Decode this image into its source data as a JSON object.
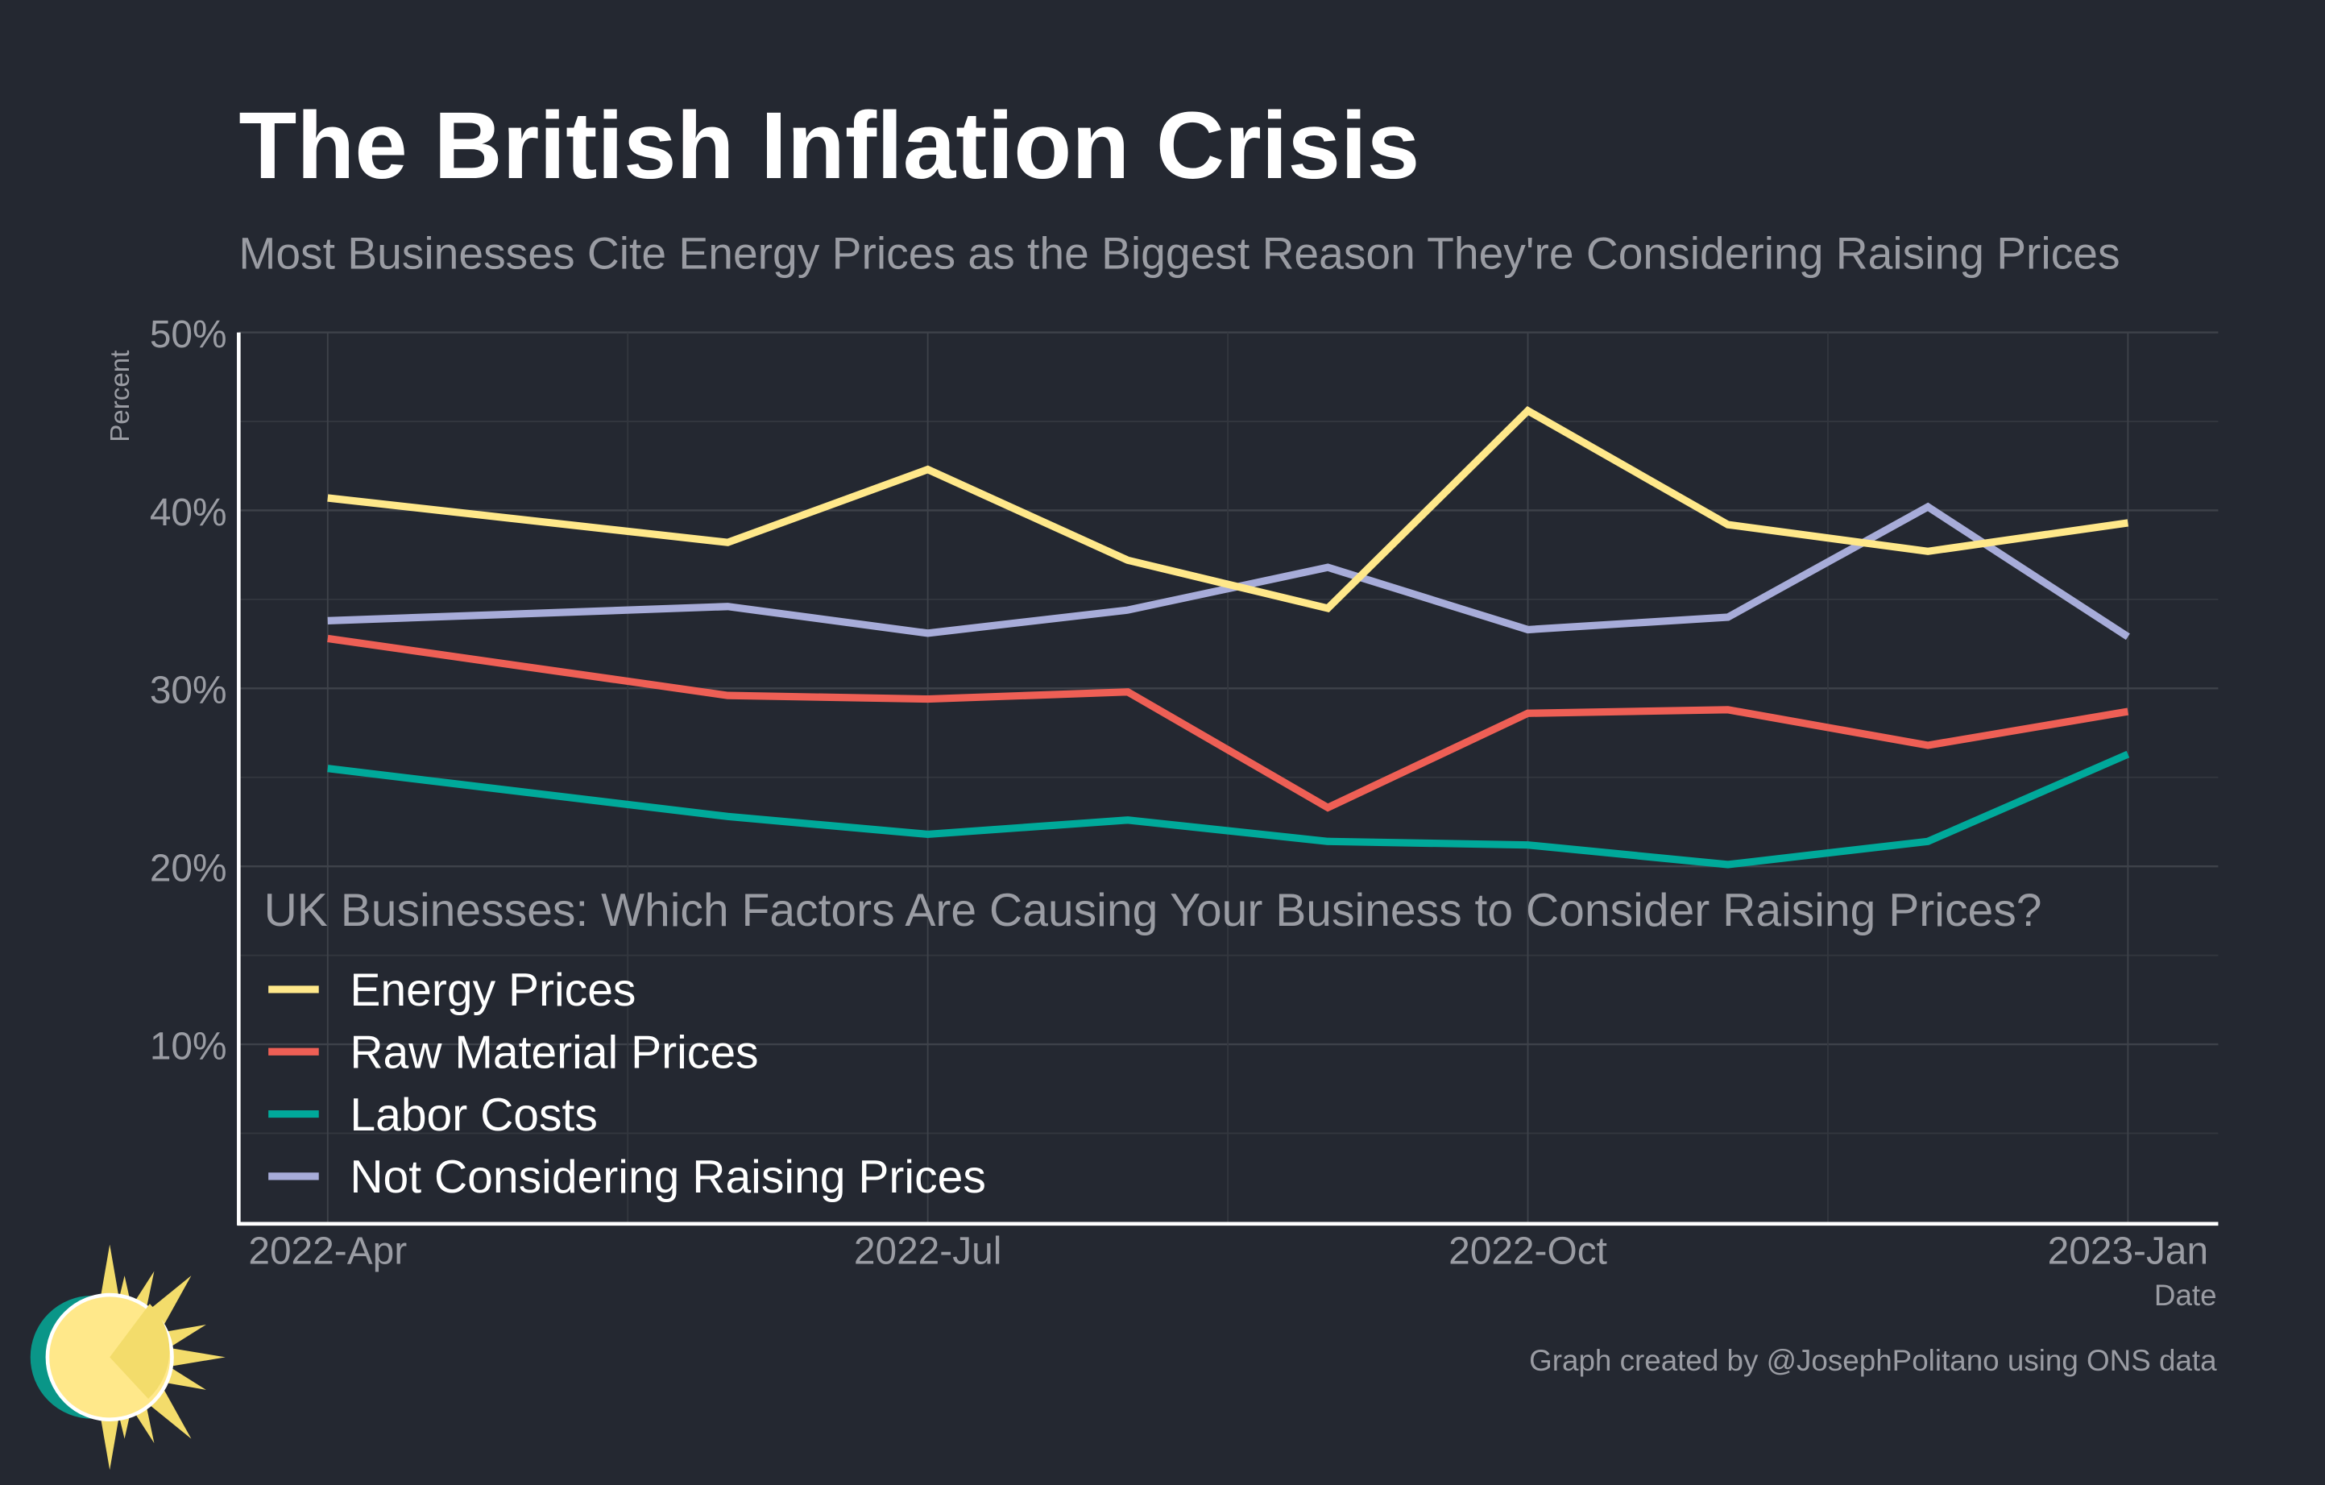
{
  "chart_data": {
    "type": "line",
    "title": "The British Inflation Crisis",
    "subtitle": "Most Businesses Cite Energy Prices as the Biggest Reason They're Considering Raising Prices",
    "xlabel": "Date",
    "ylabel": "Percent",
    "ylim": [
      0,
      50
    ],
    "yticks": [
      10,
      20,
      30,
      40,
      50
    ],
    "ytick_labels": [
      "10%",
      "20%",
      "30%",
      "40%",
      "50%"
    ],
    "xtick_values": [
      "2022-04",
      "2022-07",
      "2022-10",
      "2023-01"
    ],
    "xtick_labels": [
      "2022-Apr",
      "2022-Jul",
      "2022-Oct",
      "2023-Jan"
    ],
    "grid": true,
    "legend_title": "UK Businesses: Which Factors Are Causing Your Business to Consider Raising Prices?",
    "legend_placement": "bottom-left",
    "x": [
      "2022-04",
      "2022-06",
      "2022-07",
      "2022-08",
      "2022-09",
      "2022-10",
      "2022-11",
      "2022-12",
      "2023-01"
    ],
    "series": [
      {
        "name": "Energy Prices",
        "color": "#ffe88a",
        "values": [
          40.7,
          38.2,
          42.3,
          37.2,
          34.5,
          45.6,
          39.2,
          37.7,
          39.3
        ]
      },
      {
        "name": "Raw Material Prices",
        "color": "#ee5f55",
        "values": [
          32.8,
          29.6,
          29.4,
          29.8,
          23.3,
          28.6,
          28.8,
          26.8,
          28.7
        ]
      },
      {
        "name": "Labor Costs",
        "color": "#00a99a",
        "values": [
          25.5,
          22.8,
          21.8,
          22.6,
          21.4,
          21.2,
          20.1,
          21.4,
          26.3
        ]
      },
      {
        "name": "Not Considering Raising Prices",
        "color": "#a7acd9",
        "values": [
          33.8,
          34.6,
          33.1,
          34.4,
          36.8,
          33.3,
          34.0,
          40.2,
          32.9
        ]
      }
    ],
    "caption": "Graph created by @JosephPolitano using ONS data"
  }
}
